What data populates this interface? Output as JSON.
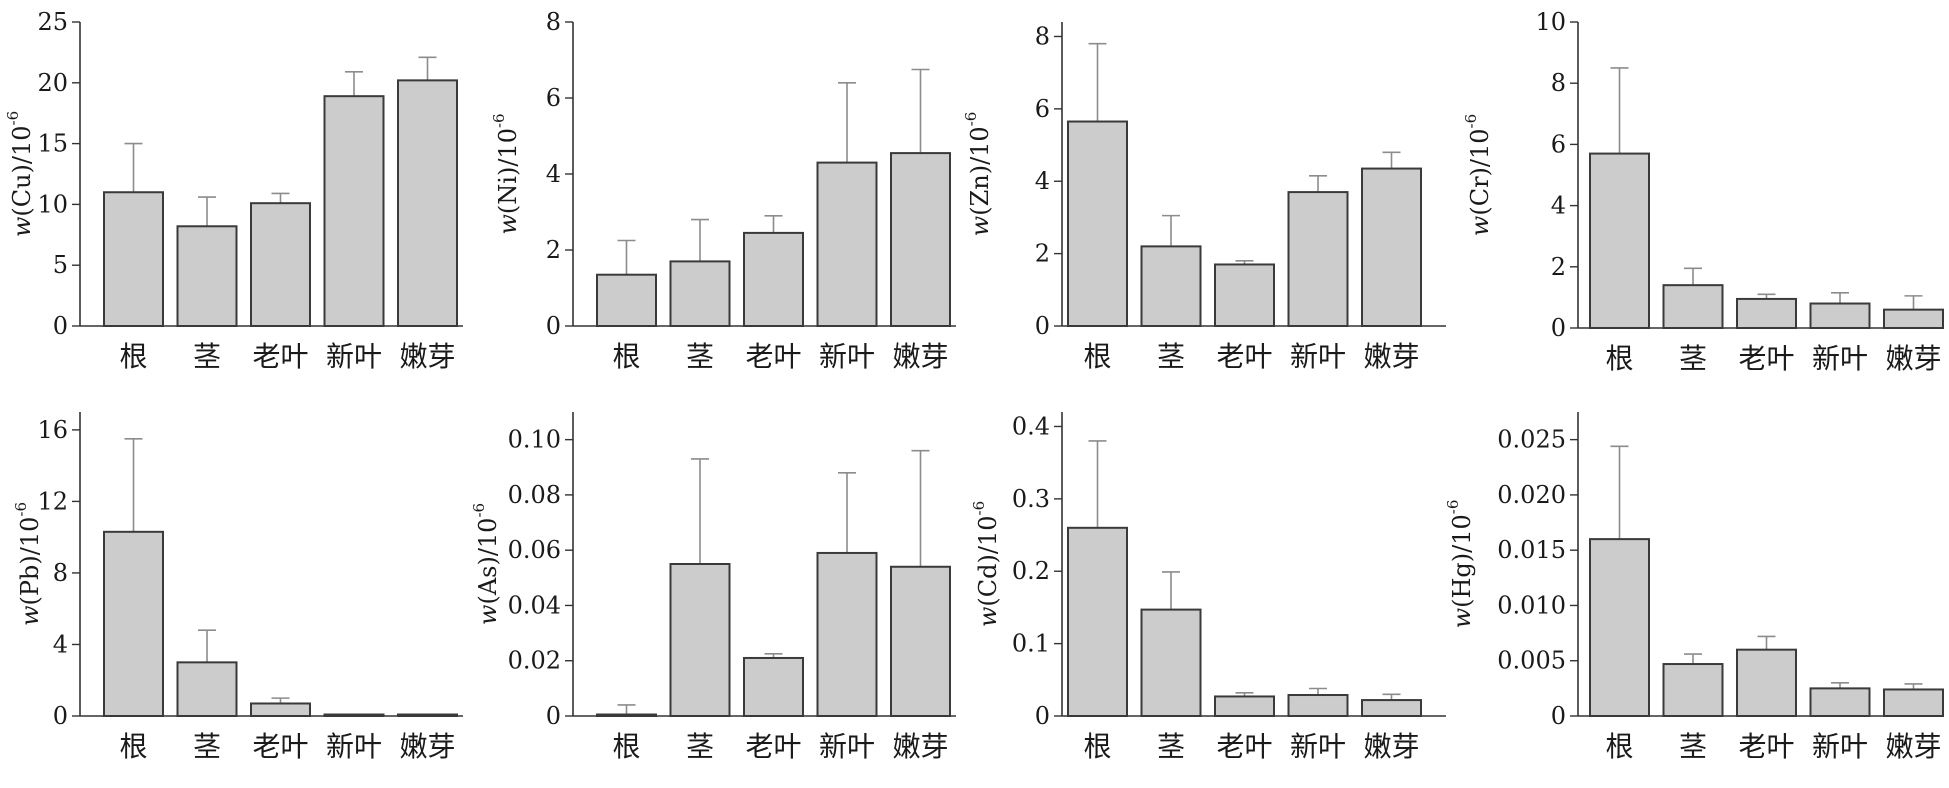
{
  "colors": {
    "bar_fill": "#cccccc",
    "bar_stroke": "#3a3a3a",
    "error_bar": "#8c8c8c",
    "axis": "#333333"
  },
  "chart_data": [
    {
      "type": "bar",
      "ylabel_var": "w",
      "ylabel_rest": "(Cu)/10",
      "ylabel_exp": "-6",
      "categories": [
        "根",
        "茎",
        "老叶",
        "新叶",
        "嫩芽"
      ],
      "values": [
        11.0,
        8.2,
        10.1,
        18.9,
        20.2
      ],
      "errors": [
        4.0,
        2.4,
        0.8,
        2.0,
        1.9
      ],
      "ylim": [
        0,
        25
      ],
      "yticks": [
        0,
        5,
        10,
        15,
        20,
        25
      ],
      "ytick_labels": [
        "0",
        "5",
        "10",
        "15",
        "20",
        "25"
      ]
    },
    {
      "type": "bar",
      "ylabel_var": "w",
      "ylabel_rest": "(Ni)/10",
      "ylabel_exp": "-6",
      "categories": [
        "根",
        "茎",
        "老叶",
        "新叶",
        "嫩芽"
      ],
      "values": [
        1.35,
        1.7,
        2.45,
        4.3,
        4.55
      ],
      "errors": [
        0.9,
        1.1,
        0.45,
        2.1,
        2.2
      ],
      "ylim": [
        0,
        8
      ],
      "yticks": [
        0,
        2,
        4,
        6,
        8
      ],
      "ytick_labels": [
        "0",
        "2",
        "4",
        "6",
        "8"
      ]
    },
    {
      "type": "bar",
      "ylabel_var": "w",
      "ylabel_rest": "(Zn)/10",
      "ylabel_exp": "-6",
      "categories": [
        "根",
        "茎",
        "老叶",
        "新叶",
        "嫩芽"
      ],
      "values": [
        5.65,
        2.2,
        1.7,
        3.7,
        4.35
      ],
      "errors": [
        2.15,
        0.85,
        0.1,
        0.45,
        0.45
      ],
      "ylim": [
        0,
        8.4
      ],
      "yticks": [
        0,
        2,
        4,
        6,
        8
      ],
      "ytick_labels": [
        "0",
        "2",
        "4",
        "6",
        "8"
      ]
    },
    {
      "type": "bar",
      "ylabel_var": "w",
      "ylabel_rest": "(Cr)/10",
      "ylabel_exp": "-6",
      "categories": [
        "根",
        "茎",
        "老叶",
        "新叶",
        "嫩芽"
      ],
      "values": [
        5.7,
        1.4,
        0.95,
        0.8,
        0.6
      ],
      "errors": [
        2.8,
        0.55,
        0.15,
        0.35,
        0.45
      ],
      "ylim": [
        0,
        10
      ],
      "yticks": [
        0,
        2,
        4,
        6,
        8,
        10
      ],
      "ytick_labels": [
        "0",
        "2",
        "4",
        "6",
        "8",
        "10"
      ]
    },
    {
      "type": "bar",
      "ylabel_var": "w",
      "ylabel_rest": "(Pb)/10",
      "ylabel_exp": "-6",
      "categories": [
        "根",
        "茎",
        "老叶",
        "新叶",
        "嫩芽"
      ],
      "values": [
        10.3,
        3.0,
        0.7,
        0.05,
        0.03
      ],
      "errors": [
        5.2,
        1.8,
        0.3,
        0.0,
        0.0
      ],
      "ylim": [
        0,
        17
      ],
      "yticks": [
        0,
        4,
        8,
        12,
        16
      ],
      "ytick_labels": [
        "0",
        "4",
        "8",
        "12",
        "16"
      ]
    },
    {
      "type": "bar",
      "ylabel_var": "w",
      "ylabel_rest": "(As)/10",
      "ylabel_exp": "-6",
      "categories": [
        "根",
        "茎",
        "老叶",
        "新叶",
        "嫩芽"
      ],
      "values": [
        0.0005,
        0.055,
        0.021,
        0.059,
        0.054
      ],
      "errors": [
        0.0035,
        0.038,
        0.0015,
        0.029,
        0.042
      ],
      "ylim": [
        0,
        0.11
      ],
      "yticks": [
        0,
        0.02,
        0.04,
        0.06,
        0.08,
        0.1
      ],
      "ytick_labels": [
        "0",
        "0.02",
        "0.04",
        "0.06",
        "0.08",
        "0.10"
      ]
    },
    {
      "type": "bar",
      "ylabel_var": "w",
      "ylabel_rest": "(Cd)/10",
      "ylabel_exp": "-6",
      "categories": [
        "根",
        "茎",
        "老叶",
        "新叶",
        "嫩芽"
      ],
      "values": [
        0.26,
        0.147,
        0.027,
        0.029,
        0.022
      ],
      "errors": [
        0.12,
        0.052,
        0.005,
        0.009,
        0.008
      ],
      "ylim": [
        0,
        0.42
      ],
      "yticks": [
        0,
        0.1,
        0.2,
        0.3,
        0.4
      ],
      "ytick_labels": [
        "0",
        "0.1",
        "0.2",
        "0.3",
        "0.4"
      ]
    },
    {
      "type": "bar",
      "ylabel_var": "w",
      "ylabel_rest": "(Hg)/10",
      "ylabel_exp": "-6",
      "categories": [
        "根",
        "茎",
        "老叶",
        "新叶",
        "嫩芽"
      ],
      "values": [
        0.016,
        0.0047,
        0.006,
        0.0025,
        0.0024
      ],
      "errors": [
        0.0084,
        0.0009,
        0.0012,
        0.0005,
        0.0005
      ],
      "ylim": [
        0,
        0.0275
      ],
      "yticks": [
        0,
        0.005,
        0.01,
        0.015,
        0.02,
        0.025
      ],
      "ytick_labels": [
        "0",
        "0.005",
        "0.010",
        "0.015",
        "0.020",
        "0.025"
      ]
    }
  ]
}
